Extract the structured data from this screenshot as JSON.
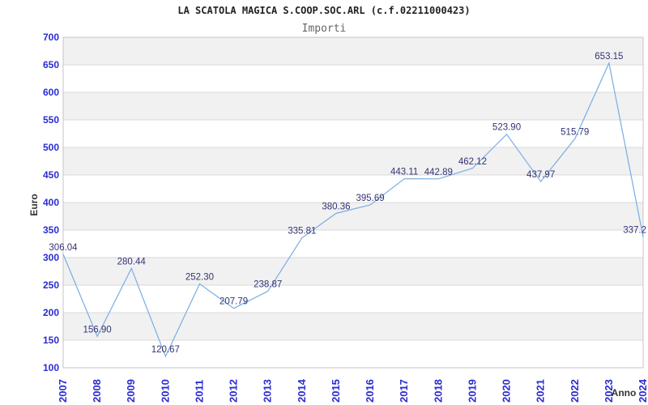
{
  "header": {
    "title": "LA SCATOLA MAGICA S.COOP.SOC.ARL (c.f.02211000423)",
    "subtitle": "Importi"
  },
  "chart_data": {
    "type": "line",
    "title": "Importi",
    "xlabel": "Anno",
    "ylabel": "Euro",
    "categories": [
      "2007",
      "2008",
      "2009",
      "2010",
      "2011",
      "2012",
      "2013",
      "2014",
      "2015",
      "2016",
      "2017",
      "2018",
      "2019",
      "2020",
      "2021",
      "2022",
      "2023",
      "2024"
    ],
    "values": [
      306.04,
      156.9,
      280.44,
      120.67,
      252.3,
      207.79,
      238.87,
      335.81,
      380.36,
      395.69,
      443.11,
      442.89,
      462.12,
      523.9,
      437.97,
      515.79,
      653.15,
      337.2
    ],
    "point_labels": [
      "306.04",
      "156.90",
      "280.44",
      "120.67",
      "252.30",
      "207.79",
      "238.87",
      "335.81",
      "380.36",
      "395.69",
      "443.11",
      "442.89",
      "462.12",
      "523.90",
      "437.97",
      "515.79",
      "653.15",
      "337.2"
    ],
    "ylim": [
      100,
      700
    ],
    "ytick_step": 50,
    "grid": true,
    "legend": "none",
    "band_pattern": "alternating-from-top",
    "colors": {
      "line": "#79ade3",
      "band": "#f1f1f1",
      "grid": "#d9d9d9",
      "border": "#c4c4c4",
      "tick_label": "#2b2bd3",
      "point_label": "#333377",
      "axis_title": "#333333",
      "title": "#222222",
      "subtitle": "#666666",
      "background": "#ffffff"
    }
  }
}
